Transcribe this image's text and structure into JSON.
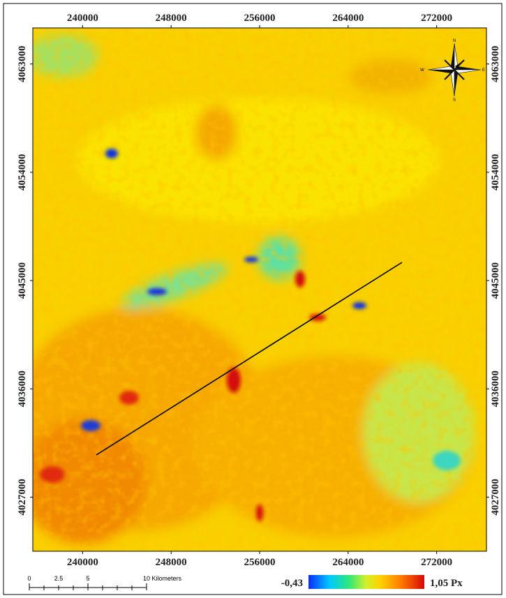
{
  "map": {
    "x_ticks": [
      240000,
      248000,
      256000,
      264000,
      272000
    ],
    "y_ticks": [
      4063000,
      4054000,
      4045000,
      4036000,
      4027000
    ],
    "xlim": [
      235500,
      276500
    ],
    "ylim": [
      4022500,
      4066000
    ],
    "compass": {
      "n": "N",
      "e": "E",
      "s": "S",
      "w": "W"
    },
    "scale_bar": {
      "labels": [
        "0",
        "2.5",
        "5",
        "10 Kilometers"
      ]
    },
    "legend": {
      "min": "-0,43",
      "max": "1,05 Px"
    }
  }
}
